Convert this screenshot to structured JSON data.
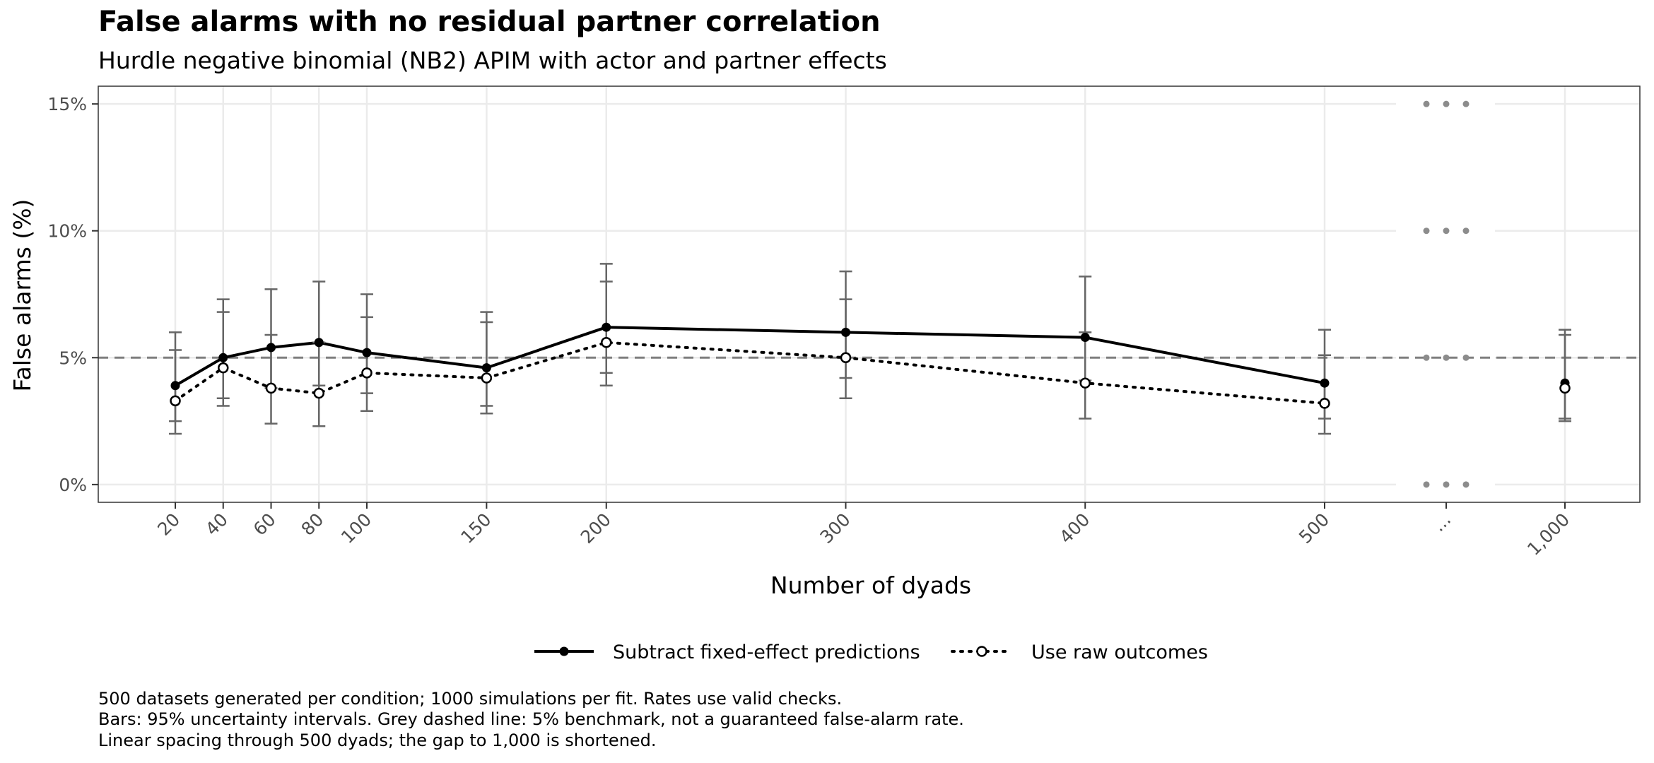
{
  "chart_data": {
    "type": "line",
    "title": "False alarms with no residual partner correlation",
    "subtitle": "Hurdle negative binomial (NB2) APIM with actor and partner effects",
    "xlabel": "Number of dyads",
    "ylabel": "False alarms (%)",
    "x_tick_labels": [
      "20",
      "40",
      "60",
      "80",
      "100",
      "150",
      "200",
      "300",
      "400",
      "500",
      "...",
      "1,000"
    ],
    "y_tick_labels": [
      "0%",
      "5%",
      "10%",
      "15%"
    ],
    "y_ticks": [
      0,
      5,
      10,
      15
    ],
    "ylim": [
      -0.7,
      15.7
    ],
    "benchmark": 5,
    "x_break_label": "...",
    "grid": true,
    "legend_position": "bottom",
    "series": [
      {
        "name": "Subtract fixed-effect predictions",
        "style": "solid",
        "marker": "filled-circle",
        "color": "#000000",
        "x": [
          20,
          40,
          60,
          80,
          100,
          150,
          200,
          300,
          400,
          500,
          1000
        ],
        "y": [
          3.9,
          5.0,
          5.4,
          5.6,
          5.2,
          4.6,
          6.2,
          6.0,
          5.8,
          4.0,
          4.0
        ],
        "lower": [
          2.5,
          3.4,
          3.8,
          3.9,
          3.6,
          3.1,
          4.4,
          4.2,
          4.1,
          2.6,
          2.6
        ],
        "upper": [
          5.3,
          6.8,
          7.7,
          8.0,
          7.5,
          6.8,
          8.7,
          8.4,
          8.2,
          6.1,
          6.1
        ]
      },
      {
        "name": "Use raw outcomes",
        "style": "dotted",
        "marker": "open-circle",
        "color": "#000000",
        "x": [
          20,
          40,
          60,
          80,
          100,
          150,
          200,
          300,
          400,
          500,
          1000
        ],
        "y": [
          3.3,
          4.6,
          3.8,
          3.6,
          4.4,
          4.2,
          5.6,
          5.0,
          4.0,
          3.2,
          3.8
        ],
        "lower": [
          2.0,
          3.1,
          2.4,
          2.3,
          2.9,
          2.8,
          3.9,
          3.4,
          2.6,
          2.0,
          2.5
        ],
        "upper": [
          6.0,
          7.3,
          5.9,
          5.6,
          6.6,
          6.4,
          8.0,
          7.3,
          6.0,
          5.1,
          5.9
        ]
      }
    ],
    "caption_lines": [
      "500 datasets generated per condition; 1000 simulations per fit. Rates use valid checks.",
      "Bars: 95% uncertainty intervals. Grey dashed line: 5% benchmark, not a guaranteed false-alarm rate.",
      "Linear spacing through 500 dyads; the gap to 1,000 is shortened."
    ]
  }
}
